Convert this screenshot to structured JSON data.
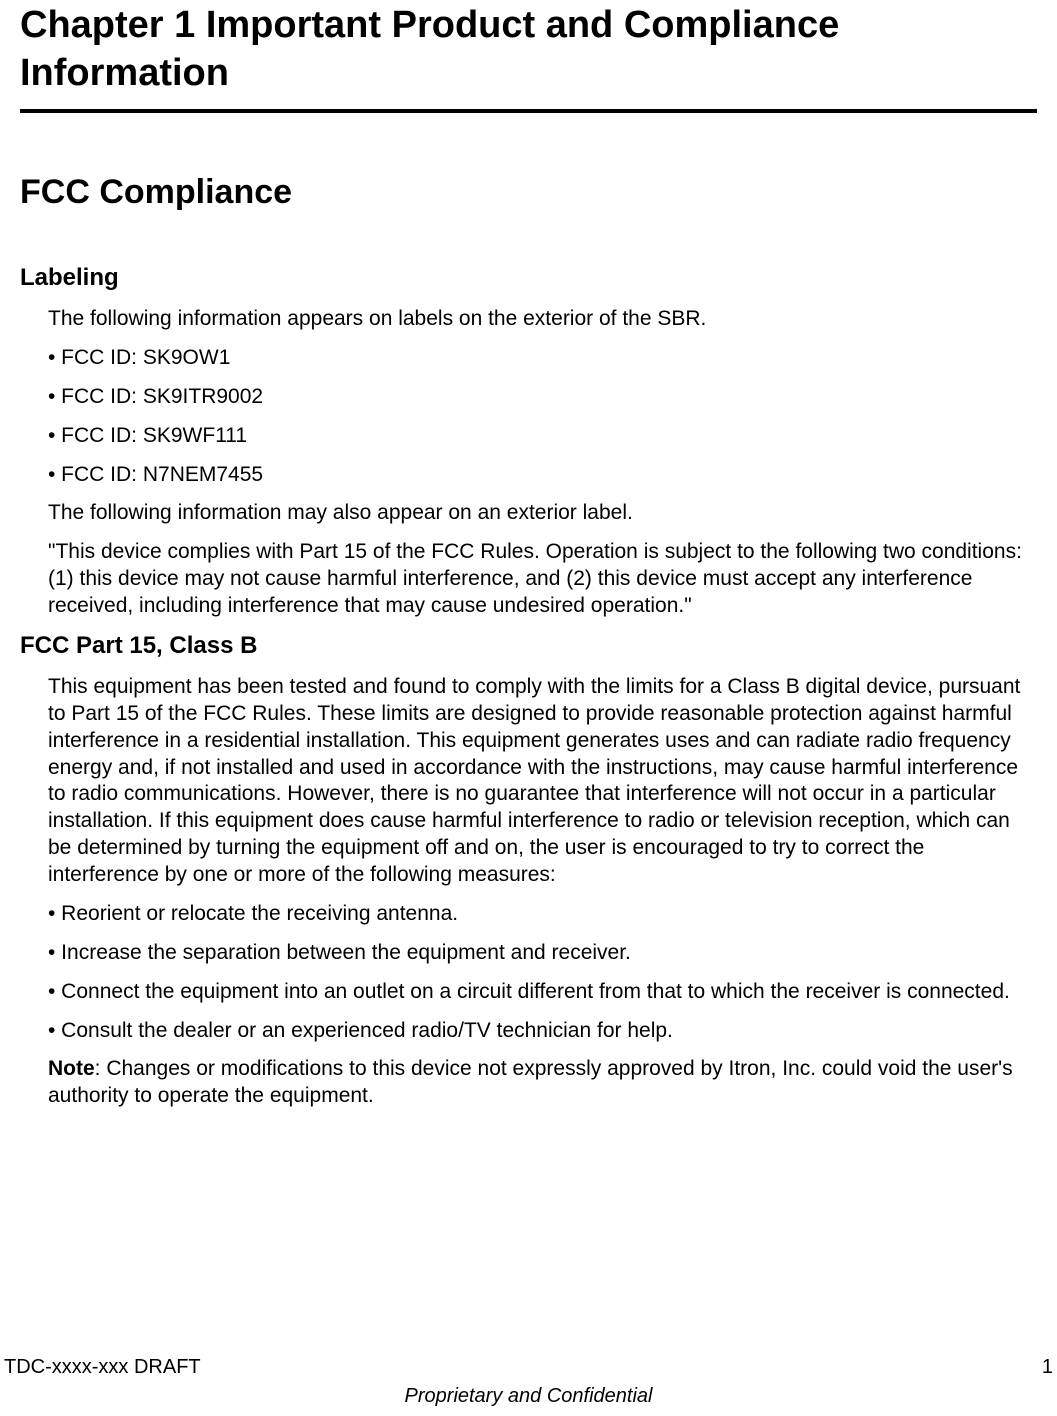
{
  "chapter": {
    "title": "Chapter 1 Important Product and Compliance Information"
  },
  "section": {
    "heading": "FCC Compliance"
  },
  "labeling": {
    "heading": "Labeling",
    "intro": "The following information appears on labels on the exterior of the SBR.",
    "fcc_ids": [
      "• FCC ID: SK9OW1",
      "• FCC ID: SK9ITR9002",
      "• FCC ID: SK9WF111",
      "• FCC ID: N7NEM7455"
    ],
    "additional_intro": "The following information may also appear on an exterior label.",
    "compliance_statement": "\"This device complies with Part 15 of the FCC Rules. Operation is subject to the following two conditions: (1) this device may not cause harmful interference, and (2) this device must accept any interference received, including interference that may cause undesired operation.\""
  },
  "part15": {
    "heading": "FCC Part 15, Class B",
    "body": "This equipment has been tested and found to comply with the limits for a Class B digital device, pursuant to Part 15 of the FCC Rules. These limits are designed to provide reasonable protection against harmful interference in a residential installation. This equipment generates uses and can radiate radio frequency energy and, if not installed and used in accordance with the instructions, may cause harmful interference to radio communications. However, there is no guarantee that interference will not occur in a particular installation. If this equipment does cause harmful interference to radio or television reception, which can be determined by turning the equipment off and on, the user is encouraged to try to correct the interference by one or more of the following measures:",
    "measures": [
      "• Reorient or relocate the receiving antenna.",
      "• Increase the separation between the equipment and receiver.",
      "• Connect the equipment into an outlet on a circuit different from that to which the receiver is connected.",
      "• Consult the dealer or an experienced radio/TV technician for help."
    ],
    "note_label": "Note",
    "note_text": ": Changes or modifications to this device not expressly approved by Itron, Inc. could void the user's authority to operate the equipment."
  },
  "footer": {
    "doc_id": "TDC-xxxx-xxx DRAFT",
    "page_num": "1",
    "confidential": "Proprietary and Confidential"
  },
  "styling": {
    "background_color": "#ffffff",
    "text_color": "#000000",
    "chapter_title_fontsize": 38,
    "section_heading_fontsize": 34,
    "subsection_heading_fontsize": 24,
    "body_fontsize": 21,
    "footer_fontsize": 20,
    "divider_thickness": 4,
    "body_indent": 28
  }
}
